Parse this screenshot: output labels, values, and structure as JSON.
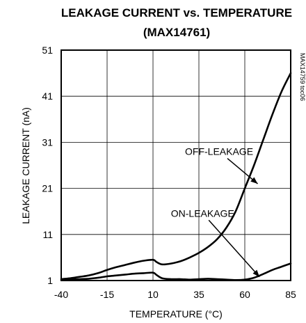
{
  "chart_data": {
    "type": "line",
    "title": "LEAKAGE CURRENT vs. TEMPERATURE",
    "subtitle": "(MAX14761)",
    "xlabel": "TEMPERATURE (°C)",
    "ylabel": "LEAKAGE CURRENT (nA)",
    "figure_code": "MAX14759 toc06",
    "xlim": [
      -40,
      85
    ],
    "ylim": [
      1,
      51
    ],
    "x_ticks": [
      -40,
      -15,
      10,
      35,
      60,
      85
    ],
    "y_ticks": [
      1,
      11,
      21,
      31,
      41,
      51
    ],
    "grid": true,
    "series": [
      {
        "name": "OFF-LEAKAGE",
        "x": [
          -40,
          -35,
          -30,
          -25,
          -20,
          -15,
          -10,
          -5,
          0,
          5,
          10,
          12,
          15,
          20,
          25,
          30,
          35,
          40,
          45,
          50,
          55,
          60,
          65,
          70,
          75,
          80,
          85
        ],
        "y": [
          1.3,
          1.5,
          1.8,
          2.1,
          2.6,
          3.3,
          3.9,
          4.4,
          4.9,
          5.3,
          5.5,
          5.0,
          4.5,
          4.7,
          5.2,
          6.0,
          7.0,
          8.3,
          10.0,
          12.5,
          16.0,
          21.0,
          26.0,
          31.5,
          37.0,
          42.0,
          46.0
        ]
      },
      {
        "name": "ON-LEAKAGE",
        "x": [
          -40,
          -35,
          -30,
          -25,
          -20,
          -15,
          -10,
          -5,
          0,
          5,
          10,
          12,
          15,
          20,
          25,
          30,
          35,
          40,
          45,
          50,
          55,
          60,
          65,
          70,
          75,
          80,
          85
        ],
        "y": [
          1.1,
          1.2,
          1.3,
          1.4,
          1.6,
          1.9,
          2.1,
          2.3,
          2.5,
          2.6,
          2.7,
          2.2,
          1.5,
          1.3,
          1.3,
          1.2,
          1.3,
          1.4,
          1.3,
          1.2,
          1.1,
          1.2,
          1.6,
          2.4,
          3.3,
          4.0,
          4.7
        ]
      }
    ],
    "annotations": [
      {
        "text": "OFF-LEAKAGE",
        "x": 46,
        "y": 29,
        "arrow_to": [
          67,
          22
        ]
      },
      {
        "text": "ON-LEAKAGE",
        "x": 37,
        "y": 15.6,
        "arrow_to": [
          68,
          1.8
        ]
      }
    ]
  }
}
